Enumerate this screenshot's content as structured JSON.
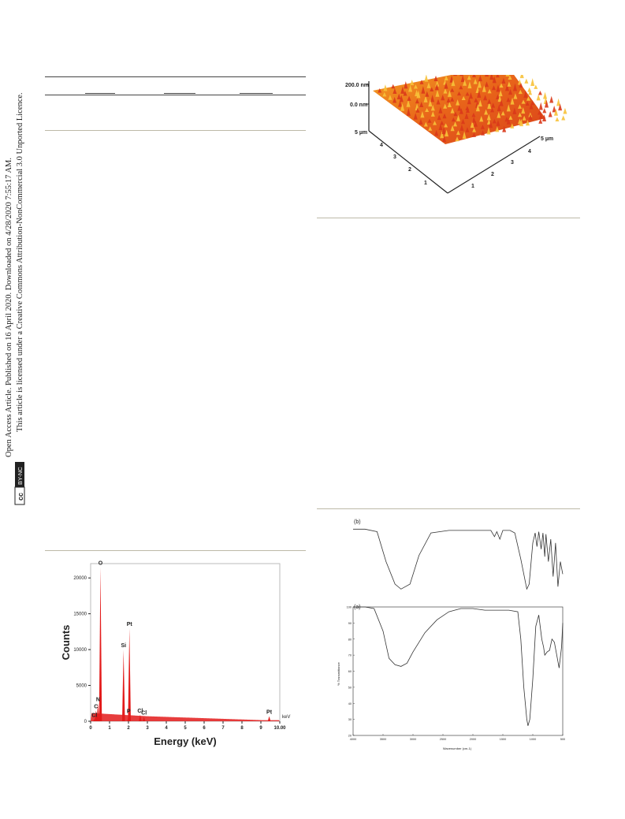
{
  "sidebar": {
    "line1": "Open Access Article. Published on 16 April 2020. Downloaded on 4/28/2020 7:55:17 AM.",
    "line2": "This article is licensed under a Creative Commons Attribution-NonCommercial 3.0 Unported Licence.",
    "badge_cc": "cc",
    "badge_text": "BY-NC"
  },
  "afm": {
    "z_top": "200.0 nm",
    "z_zero": "0.0 nm",
    "y_axis_end": "5 µm",
    "x_axis_end": "5 µm",
    "y_ticks": [
      "1",
      "2",
      "3",
      "4"
    ],
    "x_ticks": [
      "1",
      "2",
      "3",
      "4"
    ]
  },
  "chart_data": [
    {
      "type": "bar",
      "title": "",
      "xlabel": "Energy (keV)",
      "ylabel": "Counts",
      "x_unit_label": "keV",
      "xlim": [
        0,
        10
      ],
      "ylim": [
        0,
        22000
      ],
      "x_ticks": [
        "0",
        "1",
        "2",
        "3",
        "4",
        "5",
        "6",
        "7",
        "8",
        "9",
        "10.00"
      ],
      "y_ticks": [
        "0",
        "5000",
        "10000",
        "15000",
        "20000"
      ],
      "color": "#e31b1b",
      "peaks": [
        {
          "label": "Cl",
          "x": 0.2,
          "y": 300
        },
        {
          "label": "C",
          "x": 0.28,
          "y": 1500
        },
        {
          "label": "N",
          "x": 0.39,
          "y": 2500
        },
        {
          "label": "O",
          "x": 0.52,
          "y": 21500
        },
        {
          "label": "Si",
          "x": 1.74,
          "y": 10000
        },
        {
          "label": "Pt",
          "x": 2.05,
          "y": 13000
        },
        {
          "label": "P",
          "x": 2.01,
          "y": 800
        },
        {
          "label": "Cl",
          "x": 2.62,
          "y": 900
        },
        {
          "label": "Cl",
          "x": 2.82,
          "y": 600
        },
        {
          "label": "Pt",
          "x": 9.44,
          "y": 700
        }
      ]
    },
    {
      "type": "line",
      "title": "",
      "xlabel": "Wavenumber (cm-1)",
      "ylabel": "% Transmittance",
      "xlim": [
        4000,
        500
      ],
      "ylim": [
        20,
        100
      ],
      "x_ticks": [
        "4000",
        "3500",
        "3000",
        "2500",
        "2000",
        "1500",
        "1000",
        "500"
      ],
      "y_ticks": [
        "100",
        "90",
        "80",
        "70",
        "60",
        "50",
        "40",
        "30",
        "20"
      ],
      "series": [
        {
          "name": "(b)",
          "x": [
            4000,
            3800,
            3600,
            3450,
            3300,
            3200,
            3050,
            2900,
            2700,
            2400,
            2100,
            1900,
            1700,
            1640,
            1600,
            1550,
            1500,
            1460,
            1380,
            1300,
            1200,
            1150,
            1100,
            1060,
            1000,
            960,
            930,
            900,
            860,
            830,
            800,
            780,
            740,
            700,
            660,
            620,
            580,
            540,
            500
          ],
          "y": [
            96,
            96,
            94,
            70,
            52,
            48,
            52,
            75,
            93,
            95,
            95,
            95,
            95,
            90,
            94,
            88,
            95,
            95,
            95,
            93,
            72,
            60,
            48,
            52,
            85,
            93,
            82,
            94,
            80,
            93,
            74,
            92,
            70,
            88,
            58,
            85,
            50,
            70,
            60
          ]
        },
        {
          "name": "(a)",
          "x": [
            4000,
            3800,
            3650,
            3500,
            3400,
            3300,
            3200,
            3100,
            3000,
            2800,
            2600,
            2400,
            2200,
            2000,
            1800,
            1600,
            1400,
            1250,
            1200,
            1150,
            1100,
            1080,
            1050,
            1000,
            950,
            900,
            850,
            820,
            800,
            760,
            720,
            680,
            640,
            600,
            560,
            520,
            500
          ],
          "y": [
            100,
            100,
            99,
            85,
            68,
            64,
            63,
            65,
            72,
            84,
            92,
            97,
            99,
            99,
            98,
            98,
            98,
            97,
            80,
            50,
            30,
            26,
            30,
            55,
            88,
            95,
            80,
            75,
            70,
            72,
            73,
            80,
            78,
            70,
            62,
            75,
            90
          ]
        }
      ]
    }
  ]
}
